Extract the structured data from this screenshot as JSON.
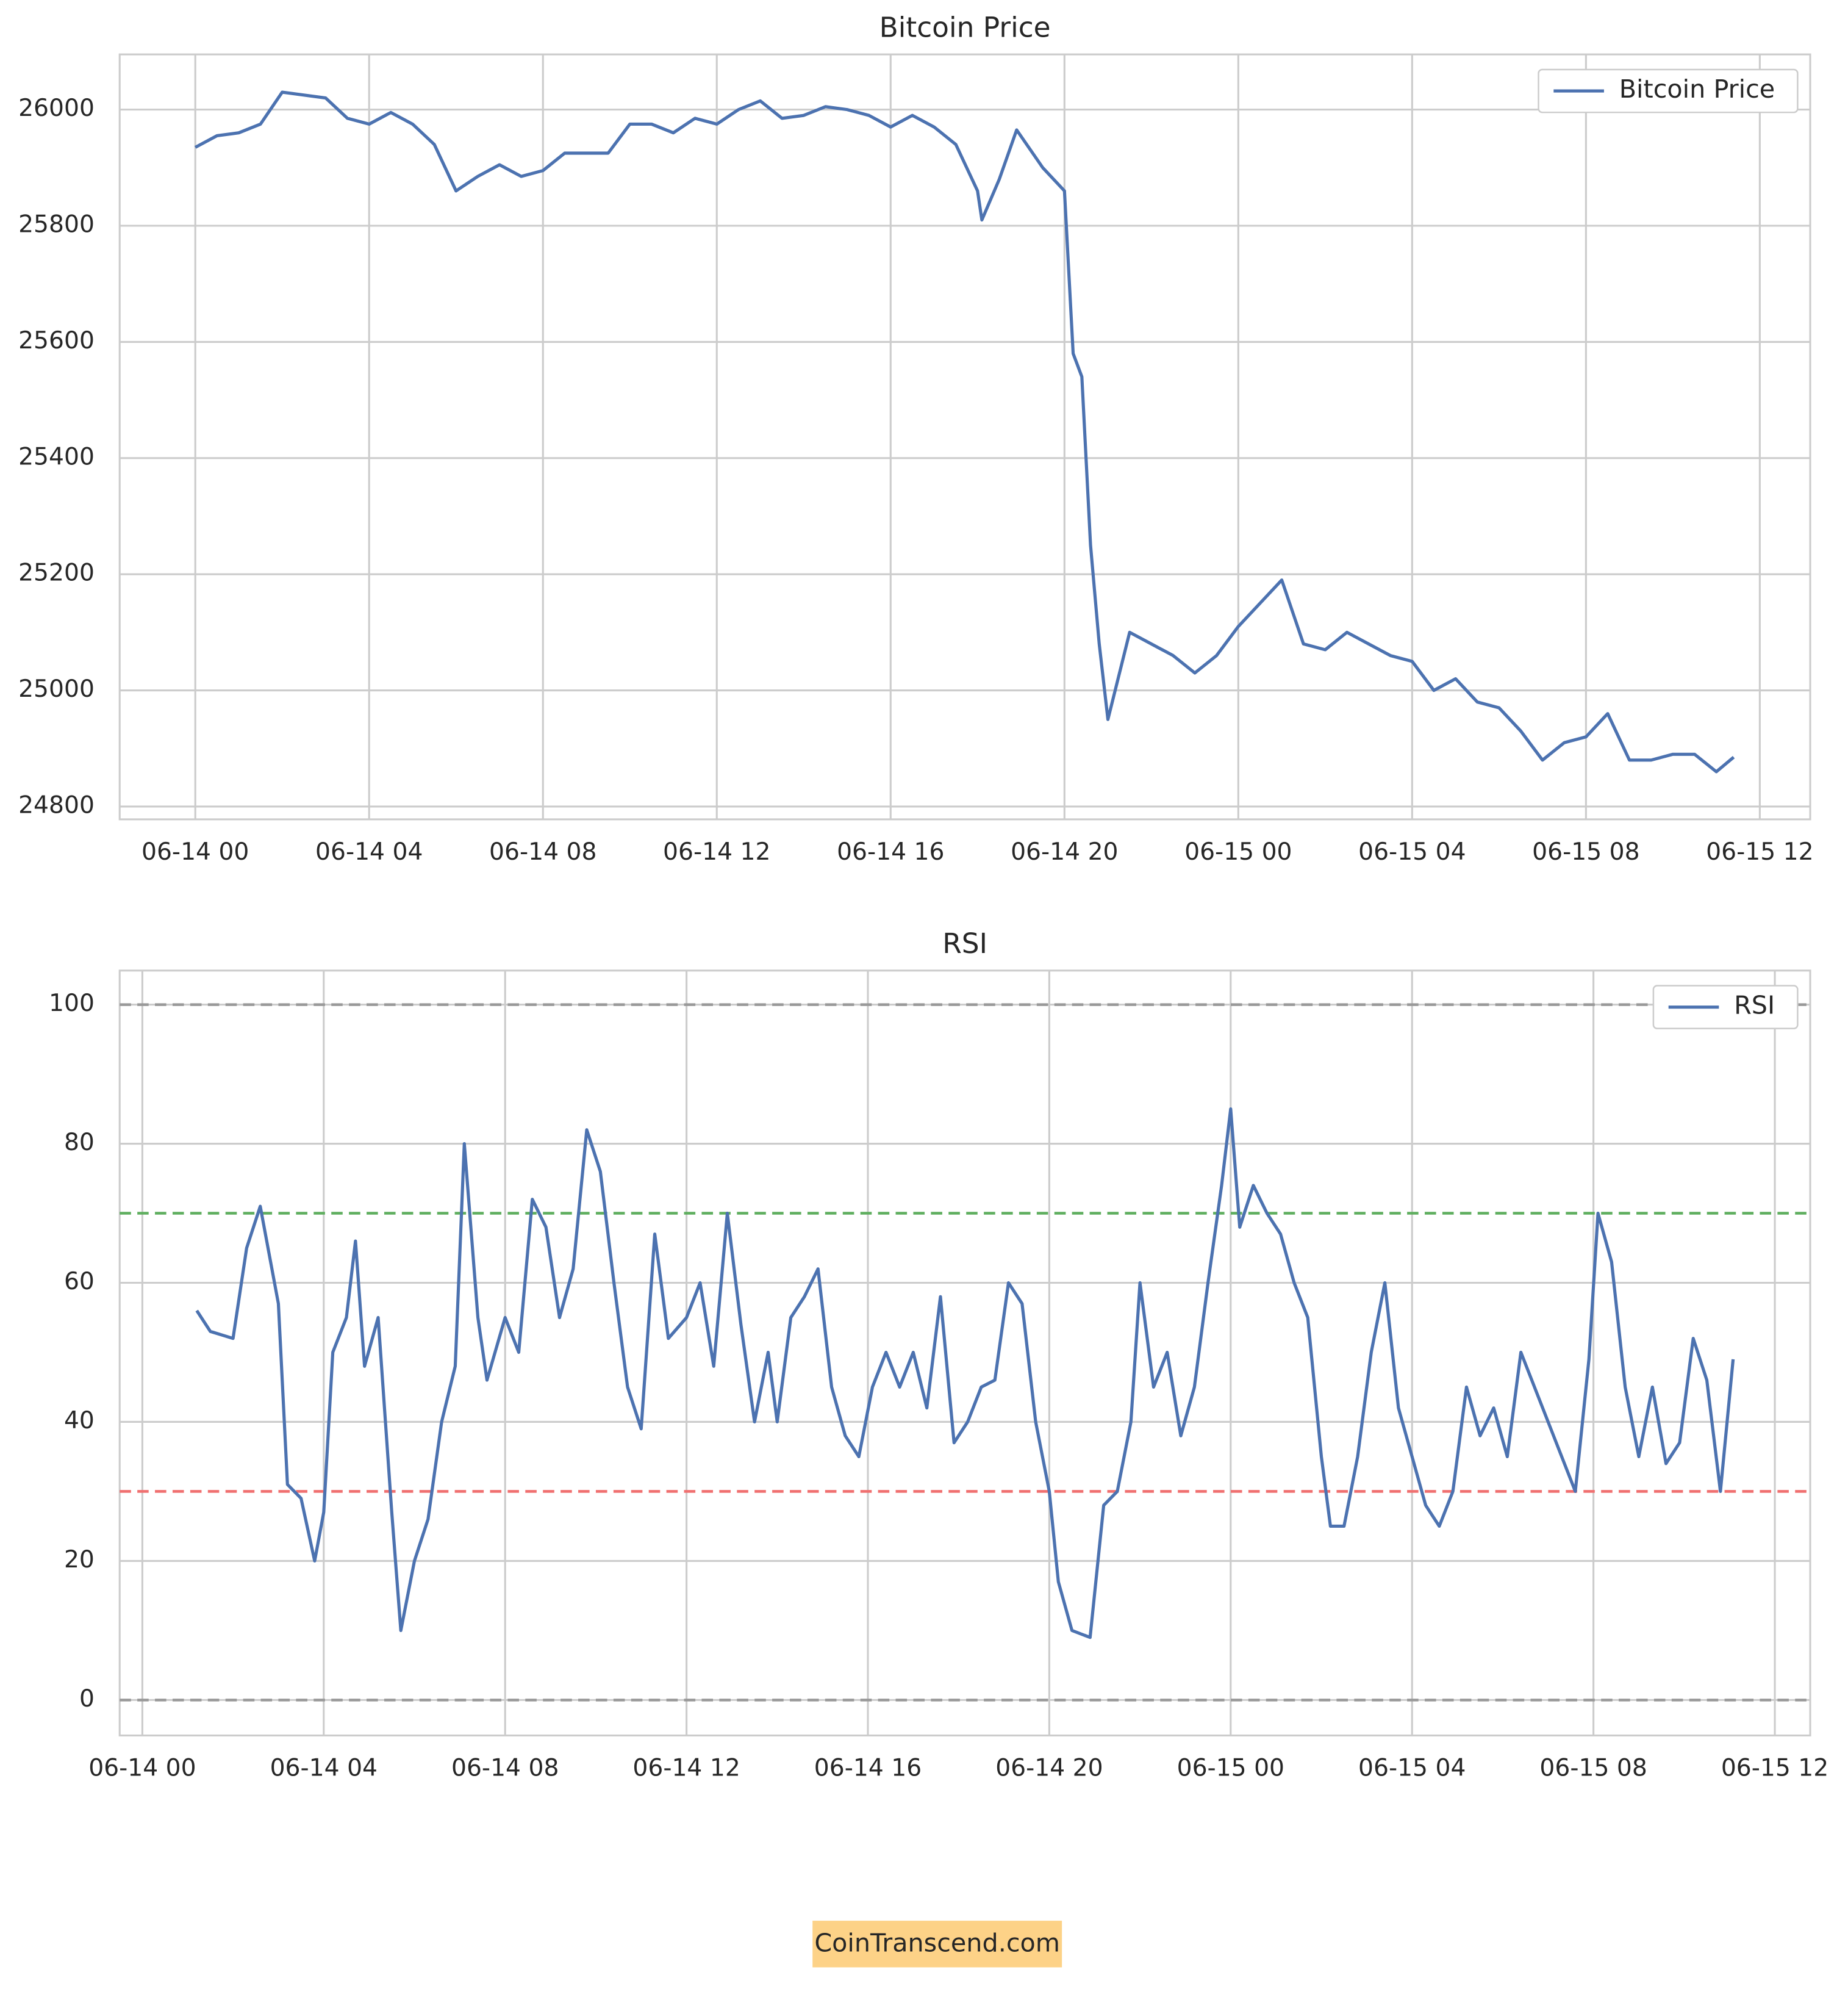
{
  "chart_data": [
    {
      "type": "line",
      "title": "Bitcoin Price",
      "x": [
        0,
        0.5,
        1,
        1.5,
        2,
        2.5,
        3,
        3.5,
        4,
        4.5,
        5,
        5.5,
        6,
        6.5,
        7,
        7.5,
        8,
        8.5,
        9,
        9.5,
        10,
        10.5,
        11,
        11.5,
        12,
        12.5,
        13,
        13.5,
        14,
        14.5,
        15,
        15.5,
        16,
        16.5,
        17,
        17.5,
        18,
        18.1,
        18.5,
        18.9,
        19.5,
        20,
        20.2,
        20.4,
        20.6,
        20.8,
        21,
        21.5,
        22,
        22.5,
        23,
        23.5,
        24,
        24.5,
        25,
        25.5,
        26,
        26.5,
        27,
        27.5,
        28,
        28.5,
        29,
        29.5,
        30,
        30.5,
        31,
        31.5,
        32,
        32.5,
        33,
        33.5,
        34,
        34.5,
        35,
        35.4
      ],
      "series": [
        {
          "name": "Bitcoin Price",
          "color": "#4c72b0",
          "values": [
            25935,
            25955,
            25960,
            25975,
            26030,
            26025,
            26020,
            25985,
            25975,
            25995,
            25975,
            25940,
            25860,
            25885,
            25905,
            25885,
            25895,
            25925,
            25925,
            25925,
            25975,
            25975,
            25960,
            25985,
            25975,
            26000,
            26015,
            25985,
            25990,
            26005,
            26000,
            25990,
            25970,
            25990,
            25970,
            25940,
            25860,
            25810,
            25880,
            25965,
            25900,
            25860,
            25580,
            25540,
            25250,
            25080,
            24950,
            25100,
            25080,
            25060,
            25030,
            25060,
            25110,
            25150,
            25190,
            25080,
            25070,
            25100,
            25080,
            25060,
            25050,
            25000,
            25020,
            24980,
            24970,
            24930,
            24880,
            24910,
            24920,
            24960,
            24880,
            24880,
            24890,
            24890,
            24860,
            24885
          ]
        }
      ],
      "xlim": [
        -1.74,
        37.16
      ],
      "xticks": [
        {
          "value": 0,
          "label": "06-14 00"
        },
        {
          "value": 4,
          "label": "06-14 04"
        },
        {
          "value": 8,
          "label": "06-14 08"
        },
        {
          "value": 12,
          "label": "06-14 12"
        },
        {
          "value": 16,
          "label": "06-14 16"
        },
        {
          "value": 20,
          "label": "06-14 20"
        },
        {
          "value": 24,
          "label": "06-15 00"
        },
        {
          "value": 28,
          "label": "06-15 04"
        },
        {
          "value": 32,
          "label": "06-15 08"
        },
        {
          "value": 36,
          "label": "06-15 12"
        }
      ],
      "ylim": [
        24778,
        26095
      ],
      "yticks": [
        24800,
        25000,
        25200,
        25400,
        25600,
        25800,
        26000
      ],
      "grid": true,
      "legend": "upper right"
    },
    {
      "type": "line",
      "title": "RSI",
      "x": [
        1.2,
        1.5,
        2,
        2.3,
        2.6,
        3,
        3.2,
        3.5,
        3.8,
        4,
        4.2,
        4.5,
        4.7,
        4.9,
        5.2,
        5.5,
        5.7,
        6,
        6.3,
        6.6,
        6.9,
        7.1,
        7.4,
        7.6,
        8,
        8.3,
        8.6,
        8.9,
        9.2,
        9.5,
        9.8,
        10.1,
        10.4,
        10.7,
        11,
        11.3,
        11.6,
        12,
        12.3,
        12.6,
        12.9,
        13.2,
        13.5,
        13.8,
        14,
        14.3,
        14.6,
        14.9,
        15.2,
        15.5,
        15.8,
        16.1,
        16.4,
        16.7,
        17,
        17.3,
        17.6,
        17.9,
        18.2,
        18.5,
        18.8,
        19.1,
        19.4,
        19.7,
        20,
        20.2,
        20.5,
        20.9,
        21.2,
        21.5,
        21.8,
        22,
        22.3,
        22.6,
        22.9,
        23.2,
        23.5,
        23.8,
        24,
        24.2,
        24.5,
        24.8,
        25.1,
        25.4,
        25.7,
        26,
        26.2,
        26.5,
        26.8,
        27.1,
        27.4,
        27.7,
        28,
        28.3,
        28.6,
        28.9,
        29.2,
        29.5,
        29.8,
        30.1,
        30.4,
        30.7,
        31,
        31.3,
        31.6,
        31.9,
        32.1,
        32.4,
        32.7,
        33,
        33.3,
        33.6,
        33.9,
        34.2,
        34.5,
        34.8,
        35.08
      ],
      "series": [
        {
          "name": "RSI",
          "color": "#4c72b0",
          "values": [
            56,
            53,
            52,
            65,
            71,
            57,
            31,
            29,
            20,
            27,
            50,
            55,
            66,
            48,
            55,
            27,
            10,
            20,
            26,
            40,
            48,
            80,
            55,
            46,
            55,
            50,
            72,
            68,
            55,
            62,
            82,
            76,
            60,
            45,
            39,
            67,
            52,
            55,
            60,
            48,
            70,
            54,
            40,
            50,
            40,
            55,
            58,
            62,
            45,
            38,
            35,
            45,
            50,
            45,
            50,
            42,
            58,
            37,
            40,
            45,
            46,
            60,
            57,
            40,
            30,
            17,
            10,
            9,
            28,
            30,
            40,
            60,
            45,
            50,
            38,
            45,
            60,
            74,
            85,
            68,
            74,
            70,
            67,
            60,
            55,
            35,
            25,
            25,
            35,
            50,
            60,
            42,
            35,
            28,
            25,
            30,
            45,
            38,
            42,
            35,
            50,
            45,
            40,
            35,
            30,
            49,
            70,
            63,
            45,
            35,
            45,
            34,
            37,
            52,
            46,
            30,
            49
          ]
        }
      ],
      "hlines": [
        {
          "value": 100,
          "color": "#999999"
        },
        {
          "value": 70,
          "color": "#5fae5f"
        },
        {
          "value": 30,
          "color": "#f07070"
        },
        {
          "value": 0,
          "color": "#999999"
        }
      ],
      "xlim": [
        -0.5,
        36.78
      ],
      "xticks": [
        {
          "value": 0,
          "label": "06-14 00"
        },
        {
          "value": 4,
          "label": "06-14 04"
        },
        {
          "value": 8,
          "label": "06-14 08"
        },
        {
          "value": 12,
          "label": "06-14 12"
        },
        {
          "value": 16,
          "label": "06-14 16"
        },
        {
          "value": 20,
          "label": "06-14 20"
        },
        {
          "value": 24,
          "label": "06-15 00"
        },
        {
          "value": 28,
          "label": "06-15 04"
        },
        {
          "value": 32,
          "label": "06-15 08"
        },
        {
          "value": 36,
          "label": "06-15 12"
        }
      ],
      "ylim": [
        -5.1,
        104.9
      ],
      "yticks": [
        0,
        20,
        40,
        60,
        80,
        100
      ],
      "grid": true,
      "legend": "upper right"
    }
  ],
  "footer": "CoinTranscend.com"
}
